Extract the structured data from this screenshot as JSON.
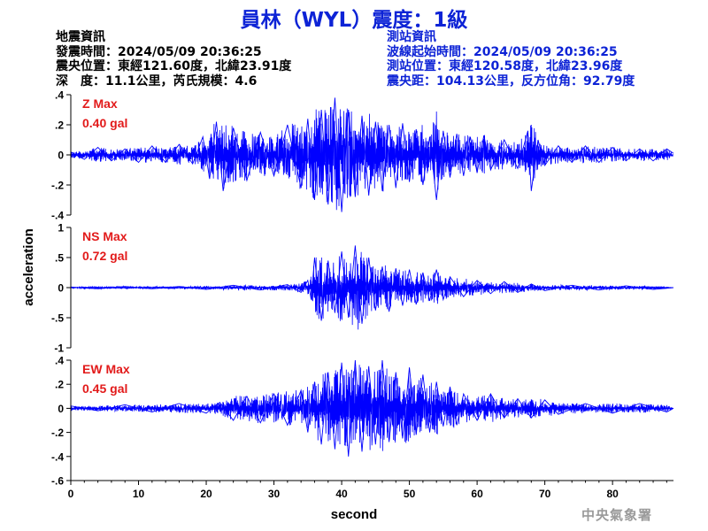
{
  "title": "員林（WYL）震度：1級",
  "quake_info": {
    "heading": "地震資訊",
    "origin_time": "發震時間：2024/05/09 20:36:25",
    "epicenter": "震央位置：東經121.60度，北緯23.91度",
    "depth_magnitude": "深　度：11.1公里，芮氏規模：4.6"
  },
  "station_info": {
    "heading": "測站資訊",
    "wave_start": "波線起始時間：2024/05/09 20:36:25",
    "station_location": "測站位置：東經120.58度，北緯23.96度",
    "distance_azimuth": "震央距：104.13公里，反方位角：92.79度"
  },
  "agency": "中央氣象署",
  "colors": {
    "trace": "#0000ff",
    "title": "#0d23d6",
    "max_label": "#e21a1a",
    "agency": "#9a9a9a"
  },
  "chart_data": {
    "type": "line",
    "xlabel": "second",
    "ylabel": "acceleration",
    "xlim": [
      0,
      89
    ],
    "xticks": [
      0,
      10,
      20,
      30,
      40,
      50,
      60,
      70,
      80
    ],
    "grid": false,
    "panels": [
      {
        "component": "Z",
        "max_label": "Z Max",
        "max_value": "0.40 gal",
        "ylim": [
          -0.4,
          0.4
        ],
        "yticks": [
          -0.4,
          -0.2,
          0,
          0.2,
          0.4
        ],
        "series": {
          "x": [
            0,
            2,
            4,
            6,
            8,
            10,
            12,
            14,
            16,
            18,
            19.5,
            20.5,
            21.5,
            22.5,
            24,
            26,
            28,
            30,
            32,
            34,
            35,
            36,
            37,
            38,
            39,
            40,
            41,
            42,
            43,
            44,
            45,
            46,
            47,
            48,
            49,
            50,
            51,
            52,
            53,
            54,
            55,
            56,
            57,
            58,
            59,
            60,
            61,
            62,
            64,
            66,
            67.5,
            68,
            69,
            70,
            72,
            74,
            76,
            78,
            80,
            82,
            84,
            86,
            88,
            89
          ],
          "y": [
            0.02,
            -0.03,
            0.05,
            -0.04,
            0.04,
            -0.05,
            0.06,
            -0.05,
            0.07,
            -0.06,
            0.12,
            -0.16,
            0.22,
            -0.24,
            0.18,
            -0.17,
            0.15,
            -0.14,
            0.2,
            -0.22,
            0.24,
            -0.3,
            0.3,
            -0.33,
            0.38,
            -0.38,
            0.3,
            -0.28,
            0.26,
            -0.27,
            0.22,
            -0.24,
            0.2,
            -0.22,
            0.21,
            -0.18,
            0.17,
            -0.2,
            0.12,
            -0.3,
            0.16,
            -0.15,
            0.14,
            -0.14,
            0.12,
            -0.12,
            0.13,
            -0.1,
            0.1,
            -0.09,
            0.16,
            -0.24,
            0.1,
            -0.07,
            0.06,
            -0.05,
            0.06,
            -0.05,
            0.05,
            -0.04,
            0.04,
            -0.04,
            0.04,
            0.01
          ]
        }
      },
      {
        "component": "NS",
        "max_label": "NS Max",
        "max_value": "0.72 gal",
        "ylim": [
          -1,
          1
        ],
        "yticks": [
          -1,
          -0.5,
          0,
          0.5,
          1
        ],
        "series": {
          "x": [
            0,
            4,
            8,
            12,
            16,
            20,
            24,
            28,
            32,
            34,
            35,
            35.5,
            36,
            37,
            38,
            39,
            40,
            41,
            42,
            43,
            44,
            45,
            46,
            47,
            48,
            49,
            50,
            51,
            52,
            53,
            54,
            55,
            56,
            58,
            60,
            62,
            64,
            66,
            68,
            70,
            74,
            78,
            82,
            86,
            89
          ],
          "y": [
            0.01,
            -0.02,
            0.02,
            -0.02,
            0.02,
            -0.03,
            0.04,
            -0.04,
            0.05,
            -0.08,
            0.12,
            -0.2,
            0.5,
            -0.55,
            0.45,
            -0.42,
            0.6,
            -0.5,
            0.7,
            -0.6,
            0.5,
            -0.38,
            0.35,
            -0.4,
            0.32,
            -0.3,
            0.3,
            -0.28,
            0.25,
            -0.22,
            0.3,
            -0.2,
            0.18,
            -0.15,
            0.12,
            -0.1,
            0.1,
            -0.08,
            0.06,
            -0.05,
            0.04,
            -0.04,
            0.03,
            -0.03,
            0.0
          ]
        }
      },
      {
        "component": "EW",
        "max_label": "EW Max",
        "max_value": "0.45 gal",
        "ylim": [
          -0.6,
          0.4
        ],
        "yticks": [
          -0.6,
          -0.4,
          -0.2,
          0,
          0.2,
          0.4
        ],
        "series": {
          "x": [
            0,
            4,
            8,
            12,
            16,
            20,
            22,
            24,
            26,
            28,
            30,
            32,
            34,
            35,
            36,
            37,
            38,
            39,
            40,
            41,
            42,
            43,
            44,
            45,
            46,
            47,
            48,
            49,
            50,
            51,
            52,
            53,
            54,
            55,
            56,
            57,
            58,
            60,
            62,
            64,
            66,
            68,
            70,
            72,
            76,
            80,
            84,
            88,
            89
          ],
          "y": [
            0.02,
            -0.02,
            0.03,
            -0.03,
            0.04,
            -0.04,
            0.05,
            -0.1,
            0.1,
            -0.12,
            0.12,
            -0.14,
            0.15,
            -0.2,
            0.22,
            -0.3,
            0.3,
            -0.34,
            0.38,
            -0.4,
            0.42,
            -0.36,
            0.35,
            -0.3,
            0.42,
            -0.28,
            0.3,
            -0.25,
            0.34,
            -0.22,
            0.28,
            -0.2,
            0.22,
            -0.15,
            0.18,
            -0.14,
            0.12,
            -0.1,
            0.12,
            -0.08,
            0.08,
            -0.08,
            0.07,
            -0.05,
            0.04,
            -0.04,
            0.04,
            -0.03,
            0.0
          ]
        }
      }
    ]
  }
}
